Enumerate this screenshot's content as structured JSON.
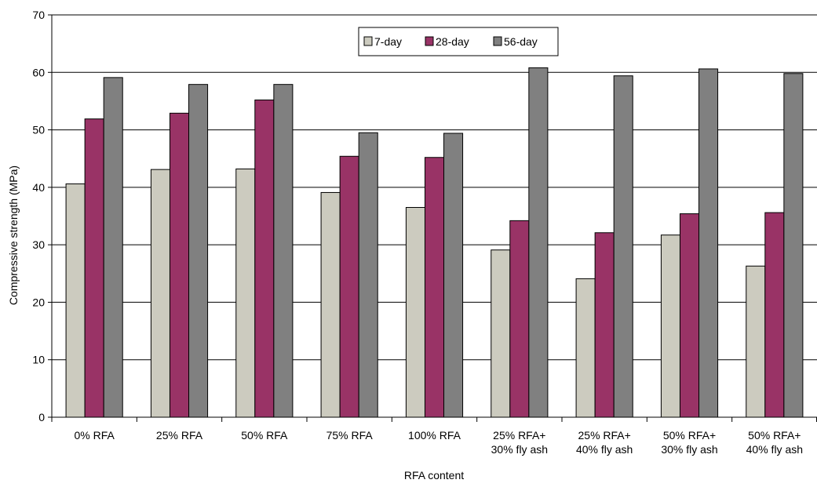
{
  "chart_data": {
    "type": "bar",
    "title": "",
    "xlabel": "RFA content",
    "ylabel": "Compressive strength (MPa)",
    "ylim": [
      0,
      70
    ],
    "yticks": [
      0,
      10,
      20,
      30,
      40,
      50,
      60,
      70
    ],
    "grid": "horizontal",
    "legend_position": "top-center",
    "categories": [
      [
        "0% RFA"
      ],
      [
        "25% RFA"
      ],
      [
        "50% RFA"
      ],
      [
        "75% RFA"
      ],
      [
        "100% RFA"
      ],
      [
        "25% RFA+",
        "30% fly ash"
      ],
      [
        "25% RFA+",
        "40% fly ash"
      ],
      [
        "50% RFA+",
        "30% fly ash"
      ],
      [
        "50% RFA+",
        "40% fly ash"
      ]
    ],
    "series": [
      {
        "name": "7-day",
        "color": "#cccbbf",
        "values": [
          40.6,
          43.1,
          43.2,
          39.1,
          36.5,
          29.1,
          24.1,
          31.7,
          26.3
        ]
      },
      {
        "name": "28-day",
        "color": "#993366",
        "values": [
          51.9,
          52.9,
          55.2,
          45.4,
          45.2,
          34.2,
          32.1,
          35.4,
          35.6
        ]
      },
      {
        "name": "56-day",
        "color": "#808080",
        "values": [
          59.1,
          57.9,
          57.9,
          49.5,
          49.4,
          60.8,
          59.4,
          60.6,
          59.8
        ]
      }
    ]
  }
}
